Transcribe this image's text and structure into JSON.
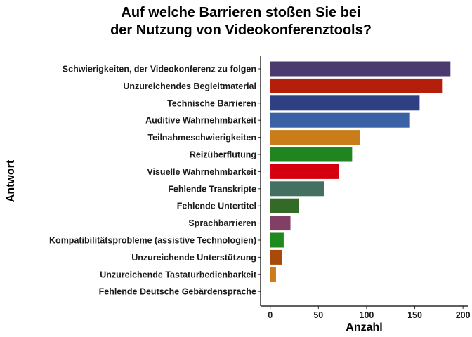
{
  "chart_data": {
    "type": "bar",
    "orientation": "horizontal",
    "title_line1": "Auf welche Barrieren stoßen Sie bei",
    "title_line2": "der Nutzung von Videokonferenztools?",
    "xlabel": "Anzahl",
    "ylabel": "Antwort",
    "xlim": [
      -10,
      205
    ],
    "xticks": [
      0,
      50,
      100,
      150,
      200
    ],
    "grid": false,
    "legend": "none",
    "categories": [
      "Schwierigkeiten, der Videokonferenz zu folgen",
      "Unzureichendes Begleitmaterial",
      "Technische Barrieren",
      "Auditive Wahrnehmbarkeit",
      "Teilnahmeschwierigkeiten",
      "Reizüberflutung",
      "Visuelle Wahrnehmbarkeit",
      "Fehlende Transkripte",
      "Fehlende Untertitel",
      "Sprachbarrieren",
      "Kompatibilitätsprobleme (assistive Technologien)",
      "Unzureichende Unterstützung",
      "Unzureichende Tastaturbedienbarkeit",
      "Fehlende Deutsche Gebärdensprache"
    ],
    "values": [
      187,
      179,
      155,
      145,
      93,
      85,
      71,
      56,
      30,
      21,
      14,
      12,
      6,
      0
    ],
    "colors": [
      "#4a3a70",
      "#b31f0a",
      "#2e3f82",
      "#3a61a6",
      "#c97d1a",
      "#208520",
      "#d4000f",
      "#437060",
      "#336a26",
      "#823f66",
      "#1e8a1e",
      "#a84b0a",
      "#cc7c1a",
      "#cc7c1a"
    ]
  }
}
